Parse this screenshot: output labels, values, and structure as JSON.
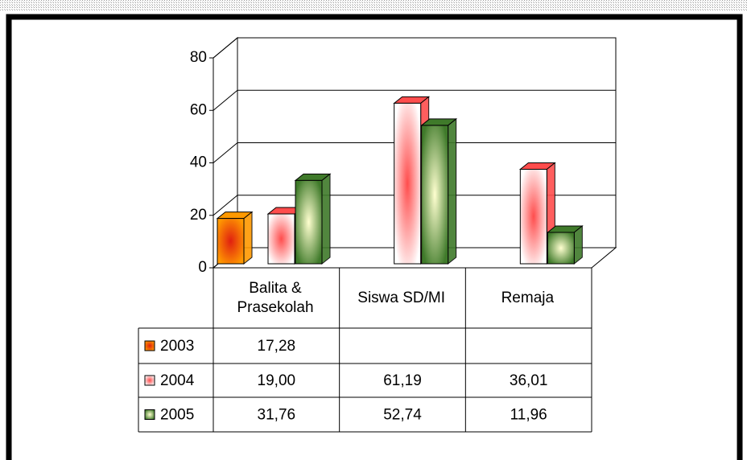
{
  "chart_data": {
    "type": "bar",
    "categories": [
      "Balita & Prasekolah",
      "Siswa SD/MI",
      "Remaja"
    ],
    "series": [
      {
        "name": "2003",
        "color": "#ff9900",
        "values": [
          17.28,
          null,
          null
        ],
        "value_labels": [
          "17,28",
          null,
          null
        ]
      },
      {
        "name": "2004",
        "color": "#ff4d4d",
        "values": [
          19.0,
          61.19,
          36.01
        ],
        "value_labels": [
          "19,00",
          "61,19",
          "36,01"
        ]
      },
      {
        "name": "2005",
        "color": "#3f7a2a",
        "values": [
          31.76,
          52.74,
          11.96
        ],
        "value_labels": [
          "31,76",
          "52,74",
          "11,96"
        ]
      }
    ],
    "ylim": [
      0,
      80
    ],
    "yticks": [
      0,
      20,
      40,
      60,
      80
    ],
    "grid": true
  }
}
